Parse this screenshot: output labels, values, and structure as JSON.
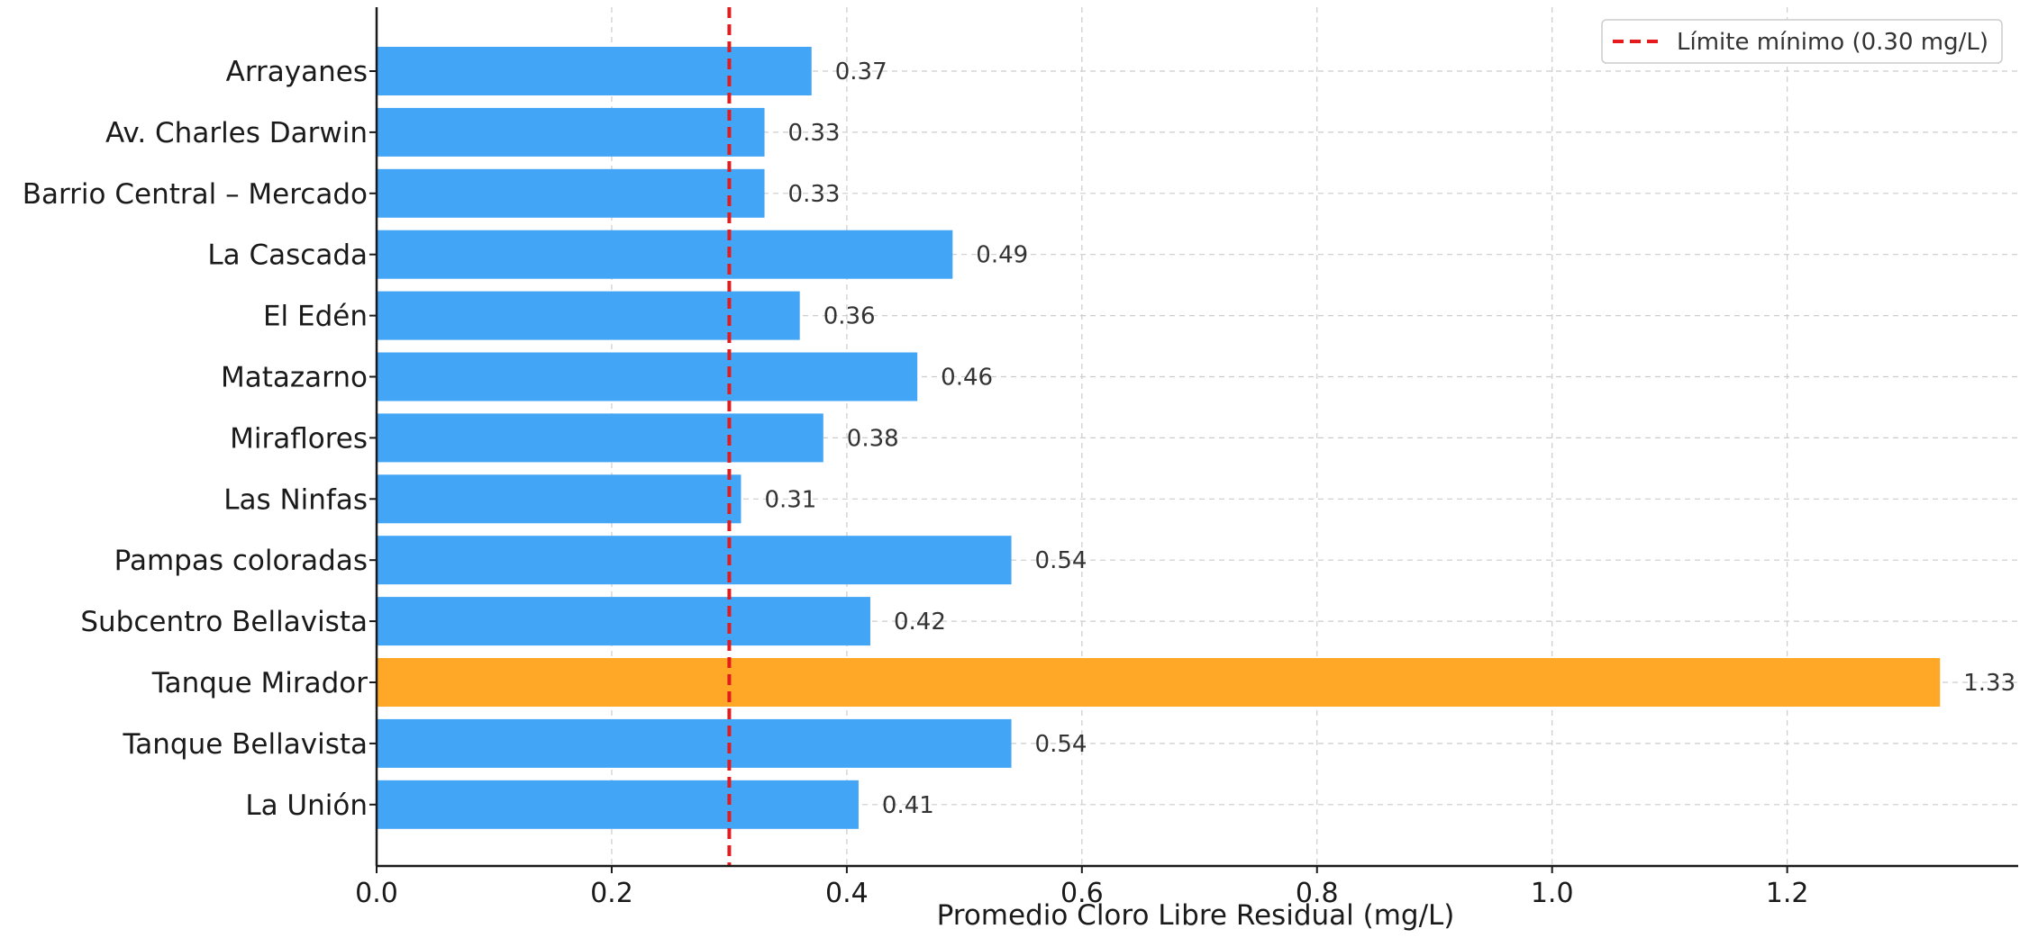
{
  "chart_data": {
    "type": "bar",
    "orientation": "horizontal",
    "categories": [
      "Arrayanes",
      "Av. Charles Darwin",
      "Barrio Central – Mercado",
      "La Cascada",
      "El Edén",
      "Matazarno",
      "Miraflores",
      "Las Ninfas",
      "Pampas coloradas",
      "Subcentro Bellavista",
      "Tanque Mirador",
      "Tanque Bellavista",
      "La Unión"
    ],
    "values": [
      0.37,
      0.33,
      0.33,
      0.49,
      0.36,
      0.46,
      0.38,
      0.31,
      0.54,
      0.42,
      1.33,
      0.54,
      0.41
    ],
    "value_labels": [
      "0.37",
      "0.33",
      "0.33",
      "0.49",
      "0.36",
      "0.46",
      "0.38",
      "0.31",
      "0.54",
      "0.42",
      "1.33",
      "0.54",
      "0.41"
    ],
    "highlight_category": "Tanque Mirador",
    "title": "",
    "xlabel": "Promedio Cloro Libre Residual (mg/L)",
    "ylabel": "",
    "xlim": [
      0,
      1.3965
    ],
    "xticks": [
      0.0,
      0.2,
      0.4,
      0.6,
      0.8,
      1.0,
      1.2
    ],
    "xtick_labels": [
      "0.0",
      "0.2",
      "0.4",
      "0.6",
      "0.8",
      "1.0",
      "1.2"
    ],
    "reference_line": {
      "value": 0.3,
      "style": "dashed",
      "color": "#e41a1c",
      "label": "Límite mínimo (0.30 mg/L)"
    },
    "grid": true,
    "legend_position": "top-right",
    "colors": {
      "bar": "#42a5f5",
      "highlight": "#ffa726",
      "grid": "#cccccc",
      "axis": "#1a1a1a"
    }
  }
}
